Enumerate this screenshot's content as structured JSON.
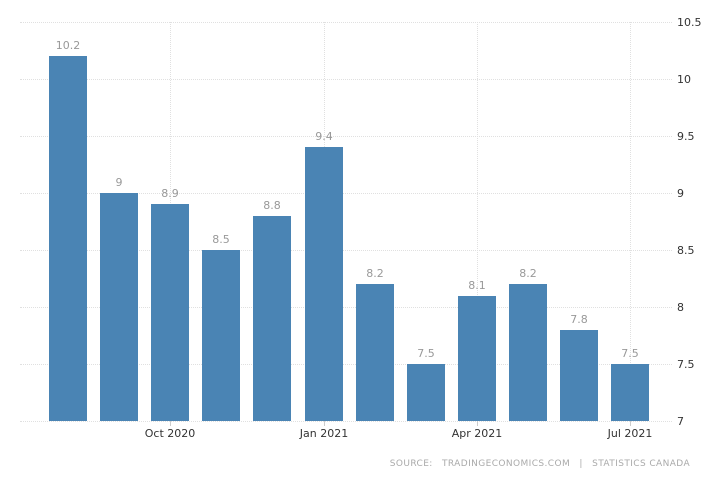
{
  "chart_data": {
    "type": "bar",
    "title": "",
    "values": [
      10.2,
      9,
      8.9,
      8.5,
      8.8,
      9.4,
      8.2,
      7.5,
      8.1,
      8.2,
      7.8,
      7.5
    ],
    "bar_labels": [
      "10.2",
      "9",
      "8.9",
      "8.5",
      "8.8",
      "9.4",
      "8.2",
      "7.5",
      "8.1",
      "8.2",
      "7.8",
      "7.5"
    ],
    "x_ticks": [
      {
        "label": "Oct 2020",
        "bar_index": 2
      },
      {
        "label": "Jan 2021",
        "bar_index": 5
      },
      {
        "label": "Apr 2021",
        "bar_index": 8
      },
      {
        "label": "Jul 2021",
        "bar_index": 11
      }
    ],
    "y_ticks": [
      "10.5",
      "10",
      "9.5",
      "9",
      "8.5",
      "8",
      "7.5",
      "7"
    ],
    "ylim": [
      7,
      10.5
    ],
    "grid": true,
    "legend": "none",
    "y_axis_side": "right",
    "bar_color": "#4a84b4",
    "value_label_color": "#999999",
    "axis_label_color": "#333333",
    "gridline_color": "#e0e0e0"
  },
  "source": {
    "prefix": "SOURCE:",
    "provider": "TRADINGECONOMICS.COM",
    "separator": "|",
    "attribution": "STATISTICS CANADA"
  }
}
